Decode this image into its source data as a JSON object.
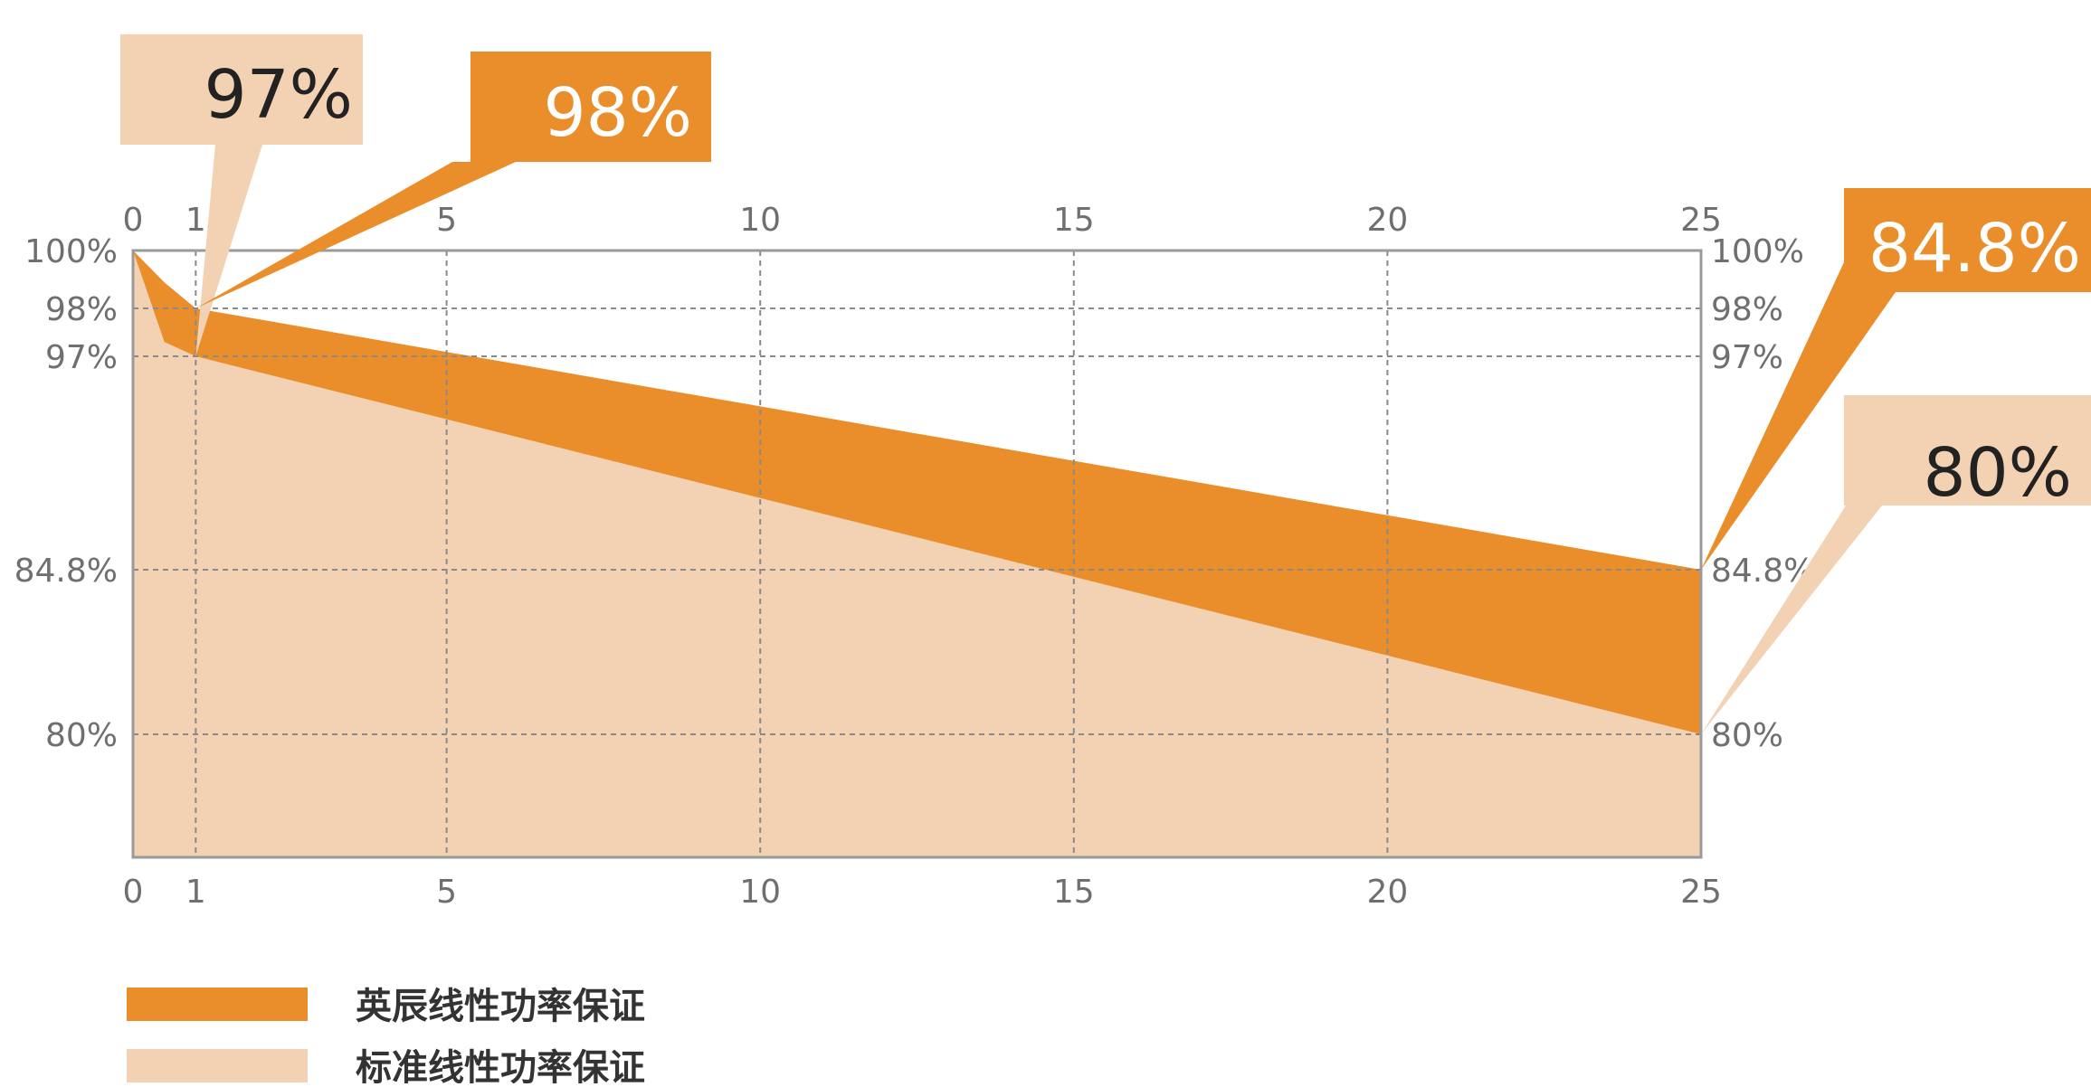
{
  "chart_data": {
    "type": "area",
    "title": "",
    "xlabel": "",
    "ylabel": "",
    "x_ticks": [
      0,
      1,
      5,
      10,
      15,
      20,
      25
    ],
    "y_ticks": [
      {
        "value": 100,
        "label": "100%"
      },
      {
        "value": 98,
        "label": "98%"
      },
      {
        "value": 97,
        "label": "97%"
      },
      {
        "value": 84.8,
        "label": "84.8%"
      },
      {
        "value": 80,
        "label": "80%"
      }
    ],
    "grid": true,
    "legend_position": "bottom-left",
    "series": [
      {
        "name": "英辰线性功率保证",
        "color": "#EA8D2B",
        "points": [
          [
            0,
            100
          ],
          [
            0.5,
            98.9
          ],
          [
            1,
            98
          ],
          [
            25,
            84.8
          ]
        ]
      },
      {
        "name": "标准线性功率保证",
        "color": "#F2D2B3",
        "points": [
          [
            0,
            100
          ],
          [
            0.5,
            97.3
          ],
          [
            1,
            97
          ],
          [
            25,
            80
          ]
        ]
      }
    ],
    "annotations": [
      {
        "label": "97%",
        "x": 1,
        "y": 97,
        "series": "标准线性功率保证",
        "text_color": "#222222"
      },
      {
        "label": "98%",
        "x": 1,
        "y": 98,
        "series": "英辰线性功率保证",
        "text_color": "#ffffff"
      },
      {
        "label": "84.8%",
        "x": 25,
        "y": 84.8,
        "series": "英辰线性功率保证",
        "text_color": "#ffffff"
      },
      {
        "label": "80%",
        "x": 25,
        "y": 80,
        "series": "标准线性功率保证",
        "text_color": "#222222"
      }
    ]
  }
}
